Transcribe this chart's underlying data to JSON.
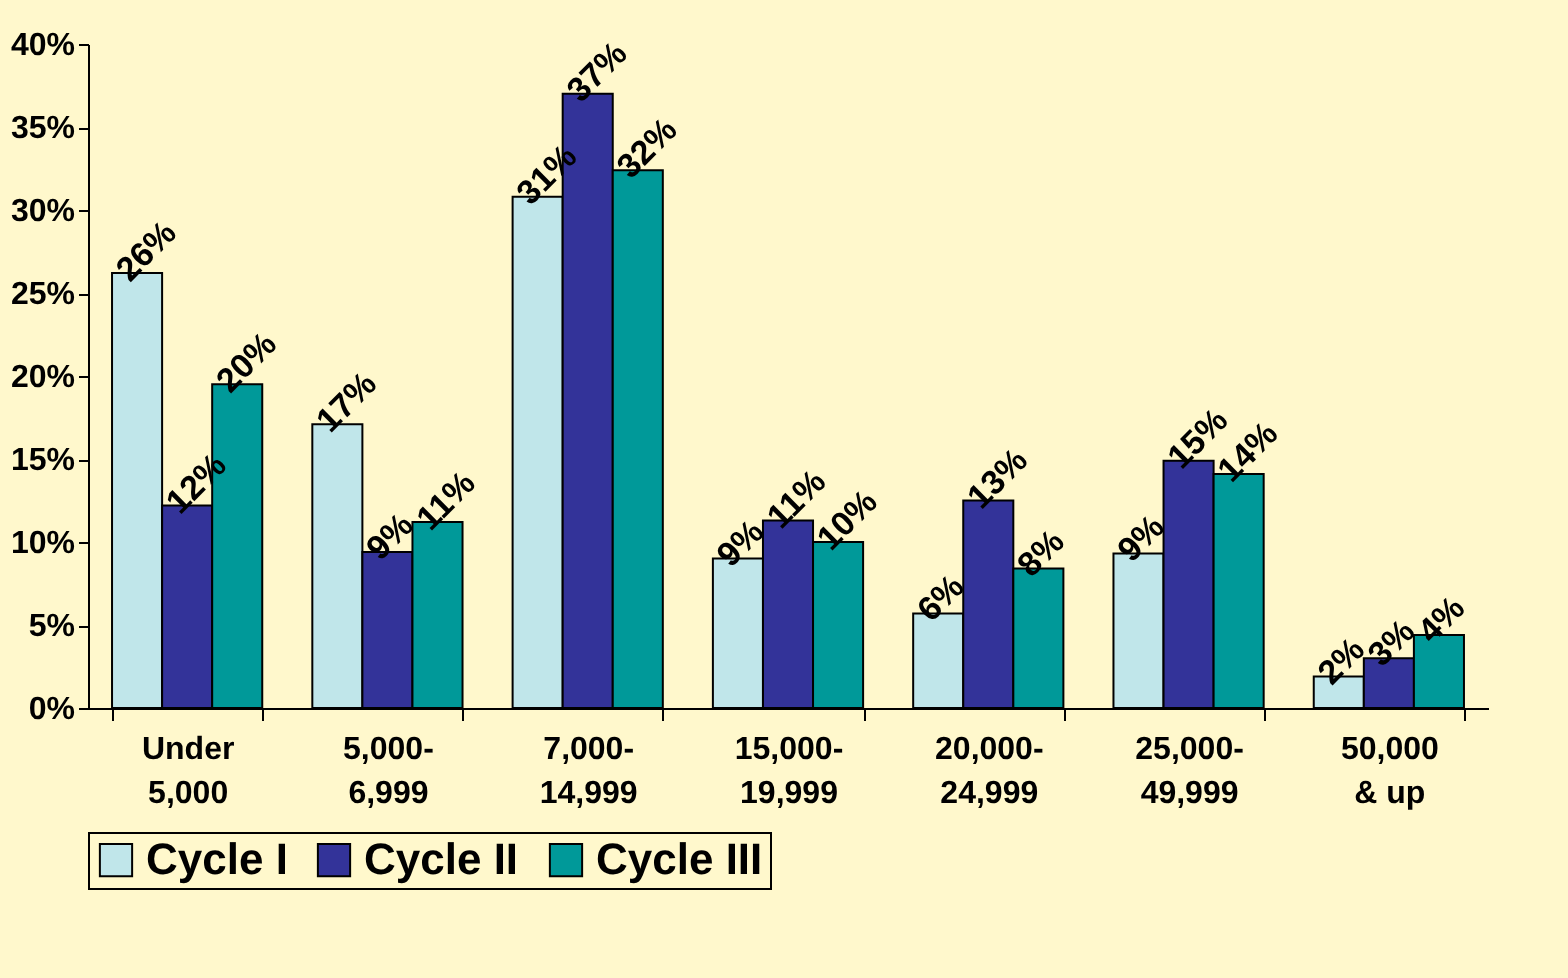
{
  "chart_data": {
    "type": "bar",
    "categories": [
      "Under\n5,000",
      "5,000-\n6,999",
      "7,000-\n14,999",
      "15,000-\n19,999",
      "20,000-\n24,999",
      "25,000-\n49,999",
      "50,000\n& up"
    ],
    "series": [
      {
        "name": "Cycle I",
        "color": "#c0e6ea",
        "values": [
          26.2,
          17.1,
          30.8,
          9.0,
          5.7,
          9.3,
          1.9
        ],
        "value_labels": [
          "26%",
          "17%",
          "31%",
          "9%",
          "6%",
          "9%",
          "2%"
        ]
      },
      {
        "name": "Cycle II",
        "color": "#333399",
        "values": [
          12.2,
          9.4,
          37.0,
          11.3,
          12.5,
          14.9,
          3.0
        ],
        "value_labels": [
          "12%",
          "9%",
          "37%",
          "11%",
          "13%",
          "15%",
          "3%"
        ]
      },
      {
        "name": "Cycle III",
        "color": "#009999",
        "values": [
          19.5,
          11.2,
          32.4,
          10.0,
          8.4,
          14.1,
          4.4
        ],
        "value_labels": [
          "20%",
          "11%",
          "32%",
          "10%",
          "8%",
          "14%",
          "4%"
        ]
      }
    ],
    "ylim": [
      0,
      40
    ],
    "yticks": [
      {
        "value": 0,
        "label": "0%"
      },
      {
        "value": 5,
        "label": "5%"
      },
      {
        "value": 10,
        "label": "10%"
      },
      {
        "value": 15,
        "label": "15%"
      },
      {
        "value": 20,
        "label": "20%"
      },
      {
        "value": 25,
        "label": "25%"
      },
      {
        "value": 30,
        "label": "30%"
      },
      {
        "value": 35,
        "label": "35%"
      },
      {
        "value": 40,
        "label": "40%"
      }
    ],
    "grid": false,
    "legend": "bottom"
  }
}
